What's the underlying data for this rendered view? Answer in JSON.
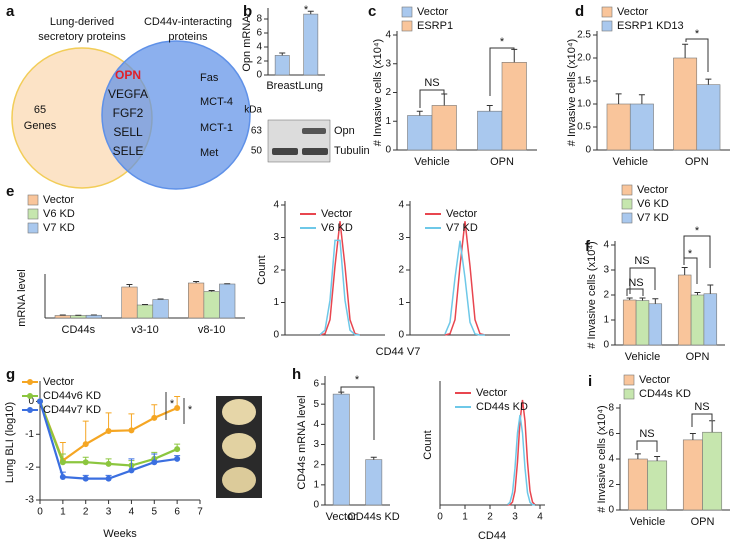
{
  "venn": {
    "panel": "a",
    "left_title": [
      "Lung-derived",
      "secretory proteins"
    ],
    "right_title": [
      "CD44v-interacting",
      "proteins"
    ],
    "left_only": [
      "65",
      "Genes"
    ],
    "shared": [
      "OPN",
      "VEGFA",
      "FGF2",
      "SELL",
      "SELE"
    ],
    "right_only": [
      "Fas",
      "MCT-4",
      "MCT-1",
      "Met"
    ]
  },
  "blot": {
    "unit": "kDa",
    "markers": [
      "63",
      "50"
    ],
    "bands": [
      "Opn",
      "Tubulin"
    ]
  },
  "chart_data": [
    {
      "type": "bar",
      "panel": "b",
      "ylabel": "Opn mRNA",
      "categories": [
        "Breast",
        "Lung"
      ],
      "series": [
        {
          "color": "#a9c8ee",
          "values": [
            2.8,
            8.7
          ],
          "errors": [
            0.35,
            0.4
          ]
        }
      ],
      "ylim": [
        0,
        9
      ],
      "yticks": [
        0,
        2,
        4,
        6,
        8
      ],
      "annotations": [
        "*"
      ]
    },
    {
      "type": "bar",
      "panel": "c",
      "ylabel": "# Invasive cells (x10⁴)",
      "categories": [
        "Vehicle",
        "OPN"
      ],
      "series": [
        {
          "name": "Vector",
          "color": "#a9c8ee",
          "values": [
            1.2,
            1.35
          ],
          "errors": [
            0.15,
            0.2
          ]
        },
        {
          "name": "ESRP1",
          "color": "#f9c59b",
          "values": [
            1.55,
            3.05
          ],
          "errors": [
            0.4,
            0.45
          ]
        }
      ],
      "ylim": [
        0,
        4
      ],
      "yticks": [
        0,
        1,
        2,
        3,
        4
      ],
      "annotations": [
        "NS",
        "*"
      ]
    },
    {
      "type": "bar",
      "panel": "d",
      "ylabel": "# Invasive cells (x10⁴)",
      "categories": [
        "Vehicle",
        "OPN"
      ],
      "series": [
        {
          "name": "Vector",
          "color": "#f9c59b",
          "values": [
            1.0,
            2.0
          ],
          "errors": [
            0.22,
            0.3
          ]
        },
        {
          "name": "ESRP1 KD13",
          "color": "#a9c8ee",
          "values": [
            1.0,
            1.42
          ],
          "errors": [
            0.2,
            0.12
          ]
        }
      ],
      "ylim": [
        0,
        2.5
      ],
      "yticks": [
        0,
        0.5,
        {
          "value": 1,
          "label": "1.0"
        },
        1.5,
        {
          "value": 2,
          "label": "2.0"
        },
        2.5
      ],
      "annotations": [
        "*"
      ]
    },
    {
      "type": "bar",
      "panel": "e",
      "ylabel": "mRNA level",
      "categories": [
        "CD44s",
        "v3-10",
        "v8-10"
      ],
      "series": [
        {
          "name": "Vector",
          "color": "#f9c59b",
          "values": [
            0.5,
            6.2,
            7.0
          ],
          "errors": [
            0.1,
            0.5,
            0.3
          ]
        },
        {
          "name": "V6 KD",
          "color": "#c6e6ae",
          "values": [
            0.5,
            2.6,
            5.3
          ],
          "errors": [
            0.05,
            0.1,
            0.2
          ]
        },
        {
          "name": "V7 KD",
          "color": "#a9c8ee",
          "values": [
            0.55,
            3.7,
            6.8
          ],
          "errors": [
            0.05,
            0.1,
            0.05
          ]
        }
      ],
      "ylim": [
        0,
        8
      ]
    },
    {
      "type": "line",
      "markers": false,
      "ylabel": "Count",
      "x": [
        1.4,
        1.6,
        1.8,
        2.0,
        2.2,
        2.4,
        2.6,
        2.8,
        3.0
      ],
      "series": [
        {
          "name": "Vector",
          "color": "#e8464f",
          "values": [
            0,
            0.04,
            0.47,
            2.12,
            3.5,
            2.12,
            0.47,
            0.04,
            0
          ]
        },
        {
          "name": "V6 KD",
          "color": "#6ec8e8",
          "values": [
            0.01,
            0.15,
            1.07,
            2.91,
            2.91,
            1.07,
            0.15,
            0.01,
            0
          ]
        }
      ],
      "xlim": [
        0,
        4
      ],
      "ylim": [
        0,
        4
      ],
      "yticks": [
        0,
        1,
        2,
        3,
        4
      ]
    },
    {
      "type": "line",
      "markers": false,
      "xlabel": "CD44 V7",
      "x": [
        1.4,
        1.6,
        1.8,
        2.0,
        2.2,
        2.4,
        2.6,
        2.8,
        3.0
      ],
      "series": [
        {
          "name": "Vector",
          "color": "#e8464f",
          "values": [
            0,
            0.04,
            0.47,
            2.12,
            3.5,
            2.12,
            0.47,
            0.04,
            0
          ]
        },
        {
          "name": "V7 KD",
          "color": "#6ec8e8",
          "values": [
            0.03,
            0.39,
            1.76,
            2.9,
            1.76,
            0.39,
            0.03,
            0,
            0
          ]
        }
      ],
      "xlim": [
        0,
        4
      ],
      "ylim": [
        0,
        4
      ],
      "yticks": [
        0,
        1,
        2,
        3,
        4
      ]
    },
    {
      "type": "bar",
      "panel": "f",
      "ylabel": "# Invasive cells (x10⁴)",
      "categories": [
        "Vehicle",
        "OPN"
      ],
      "series": [
        {
          "name": "Vector",
          "color": "#f9c59b",
          "values": [
            1.8,
            2.8
          ],
          "errors": [
            0.08,
            0.3
          ]
        },
        {
          "name": "V6 KD",
          "color": "#c6e6ae",
          "values": [
            1.78,
            2.0
          ],
          "errors": [
            0.1,
            0.1
          ]
        },
        {
          "name": "V7 KD",
          "color": "#a9c8ee",
          "values": [
            1.65,
            2.05
          ],
          "errors": [
            0.2,
            0.35
          ]
        }
      ],
      "ylim": [
        0,
        4
      ],
      "yticks": [
        0,
        1,
        2,
        3,
        4
      ],
      "annotations": [
        "NS",
        "NS",
        "*",
        "*"
      ]
    },
    {
      "type": "line",
      "markers": true,
      "panel": "g",
      "ylabel": "Lung BLI (log10)",
      "xlabel": "Weeks",
      "x": [
        0,
        1,
        2,
        3,
        4,
        5,
        6
      ],
      "series": [
        {
          "name": "Vector",
          "color": "#f5a623",
          "values": [
            0,
            -1.8,
            -1.3,
            -0.9,
            -0.88,
            -0.5,
            -0.2
          ],
          "errors": [
            0,
            0.55,
            0.7,
            0.55,
            0.5,
            0.4,
            0.35
          ]
        },
        {
          "name": "CD44v6 KD",
          "color": "#8cc63f",
          "values": [
            0,
            -1.85,
            -1.85,
            -1.9,
            -1.95,
            -1.75,
            -1.45
          ],
          "errors": [
            0,
            0.25,
            0.15,
            0.15,
            0.15,
            0.2,
            0.15
          ]
        },
        {
          "name": "CD44v7 KD",
          "color": "#3b6fe0",
          "values": [
            0,
            -2.3,
            -2.35,
            -2.35,
            -2.1,
            -1.85,
            -1.75
          ],
          "errors": [
            0,
            0.15,
            0.1,
            0.1,
            0.35,
            0.25,
            0.1
          ]
        }
      ],
      "xlim": [
        0,
        7
      ],
      "xticks": [
        0,
        1,
        2,
        3,
        4,
        5,
        6,
        7
      ],
      "ylim": [
        -3,
        0.5
      ],
      "yticks": [
        -3,
        -2,
        -1,
        0
      ],
      "annotations": [
        "*",
        "*"
      ]
    },
    {
      "type": "bar",
      "panel": "h",
      "ylabel": "CD44s mRNA level",
      "categories": [
        "Vector",
        "CD44s KD"
      ],
      "series": [
        {
          "color": "#a9c8ee",
          "values": [
            5.5,
            2.25
          ],
          "errors": [
            0.1,
            0.12
          ]
        }
      ],
      "ylim": [
        0,
        6.2
      ],
      "yticks": [
        0,
        1,
        2,
        3,
        4,
        5,
        6
      ],
      "annotations": [
        "*"
      ]
    },
    {
      "type": "line",
      "markers": false,
      "ylabel": "Count",
      "xlabel": "CD44",
      "x": [
        2.7,
        2.8,
        2.9,
        3.0,
        3.1,
        3.2,
        3.3,
        3.4,
        3.5,
        3.6,
        3.7,
        3.8
      ],
      "series": [
        {
          "name": "Vector",
          "color": "#e8464f",
          "values": [
            0,
            0.01,
            0.1,
            0.47,
            1.44,
            2.8,
            3.5,
            2.8,
            1.44,
            0.47,
            0.1,
            0.01
          ]
        },
        {
          "name": "CD44s KD",
          "color": "#6ec8e8",
          "values": [
            0.01,
            0.09,
            0.41,
            1.23,
            2.4,
            3.0,
            2.4,
            1.23,
            0.41,
            0.09,
            0.01,
            0
          ]
        }
      ],
      "xlim": [
        0,
        4.2
      ],
      "xticks": [
        0,
        1,
        2,
        3,
        4
      ],
      "ylim": [
        0,
        4
      ]
    },
    {
      "type": "bar",
      "panel": "i",
      "ylabel": "# Invasive cells (x10⁴)",
      "categories": [
        "Vehicle",
        "OPN"
      ],
      "series": [
        {
          "name": "Vector",
          "color": "#f9c59b",
          "values": [
            4.0,
            5.5
          ],
          "errors": [
            0.4,
            0.5
          ]
        },
        {
          "name": "CD44s KD",
          "color": "#c6e6ae",
          "values": [
            3.85,
            6.1
          ],
          "errors": [
            0.35,
            0.9
          ]
        }
      ],
      "ylim": [
        0,
        8
      ],
      "yticks": [
        0,
        2,
        4,
        6,
        8
      ],
      "annotations": [
        "NS",
        "NS"
      ]
    }
  ]
}
